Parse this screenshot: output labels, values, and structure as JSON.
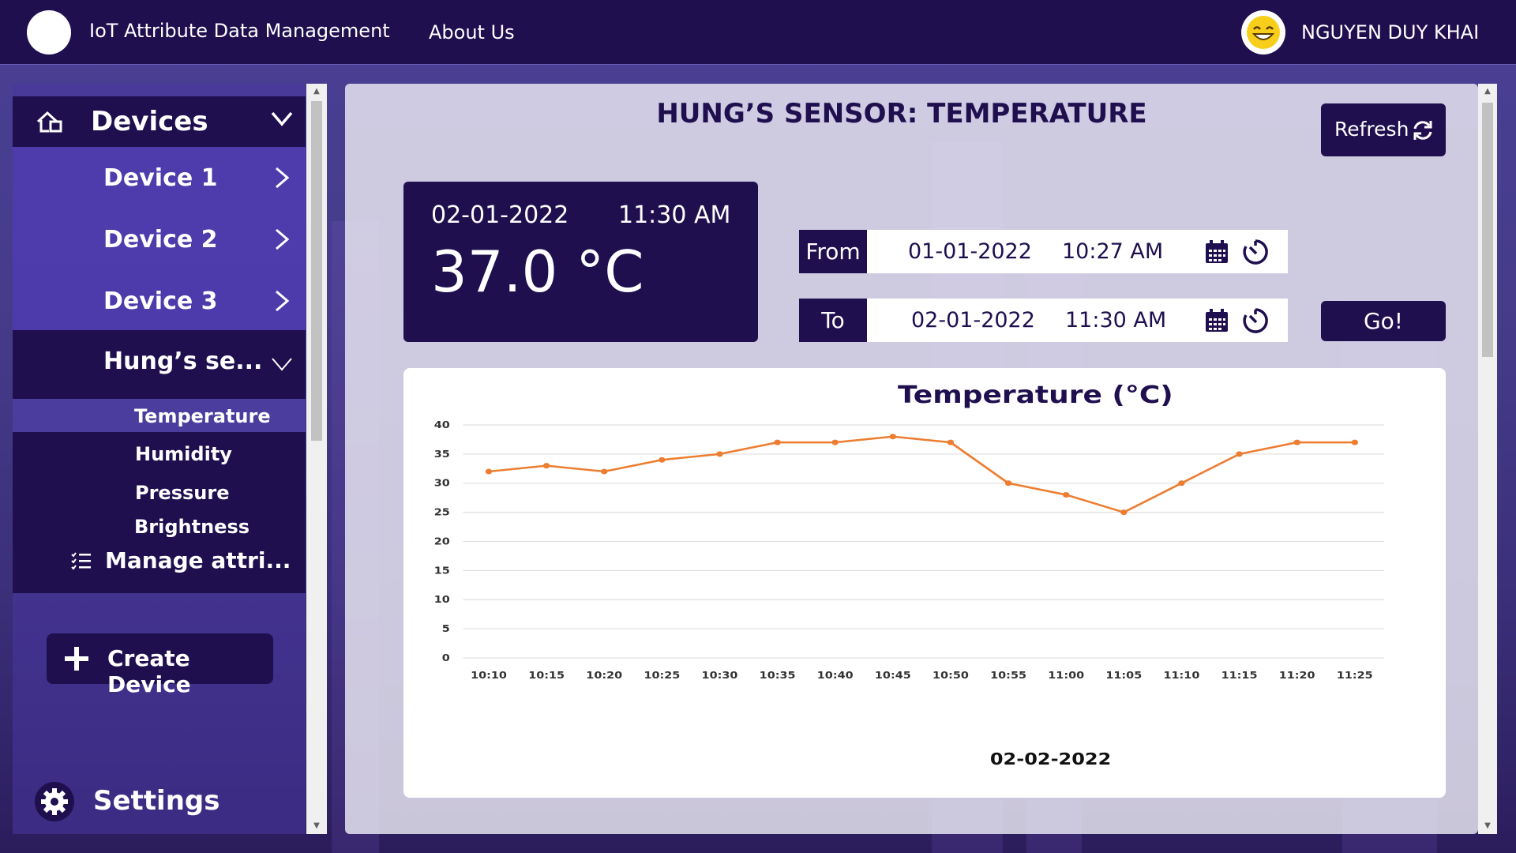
{
  "header": {
    "app_title": "IoT Attribute Data Management",
    "about_label": "About Us",
    "user_name": "NGUYEN DUY KHAI"
  },
  "sidebar": {
    "devices_label": "Devices",
    "devices": [
      {
        "label": "Device 1"
      },
      {
        "label": "Device 2"
      },
      {
        "label": "Device 3"
      }
    ],
    "expanded_device": "Hung’s se...",
    "attributes": [
      {
        "label": "Temperature",
        "active": true
      },
      {
        "label": "Humidity"
      },
      {
        "label": "Pressure"
      },
      {
        "label": "Brightness"
      }
    ],
    "manage_label": "Manage attri...",
    "create_label": "Create Device",
    "settings_label": "Settings"
  },
  "main": {
    "title": "HUNG’S SENSOR: TEMPERATURE",
    "refresh_label": "Refresh",
    "current": {
      "date": "02-01-2022",
      "time": "11:30 AM",
      "value": "37.0 °C"
    },
    "range": {
      "from_label": "From",
      "from_date": "01-01-2022",
      "from_time": "10:27 AM",
      "to_label": "To",
      "to_date": "02-01-2022",
      "to_time": "11:30 AM"
    },
    "go_label": "Go!"
  },
  "colors": {
    "navy": "#1f0f4f",
    "line": "#ed7d31"
  },
  "chart_data": {
    "type": "line",
    "title": "Temperature (°C)",
    "xlabel": "02-02-2022",
    "ylabel": "",
    "x": [
      "10:10",
      "10:15",
      "10:20",
      "10:25",
      "10:30",
      "10:35",
      "10:40",
      "10:45",
      "10:50",
      "10:55",
      "11:00",
      "11:05",
      "11:10",
      "11:15",
      "11:20",
      "11:25"
    ],
    "series": [
      {
        "values": [
          32,
          33,
          32,
          34,
          35,
          37,
          37,
          38,
          37,
          30,
          28,
          25,
          30,
          35,
          37,
          37
        ]
      }
    ],
    "yticks": [
      0,
      5,
      10,
      15,
      20,
      25,
      30,
      35,
      40
    ],
    "ylim": [
      0,
      40
    ],
    "grid": true
  }
}
